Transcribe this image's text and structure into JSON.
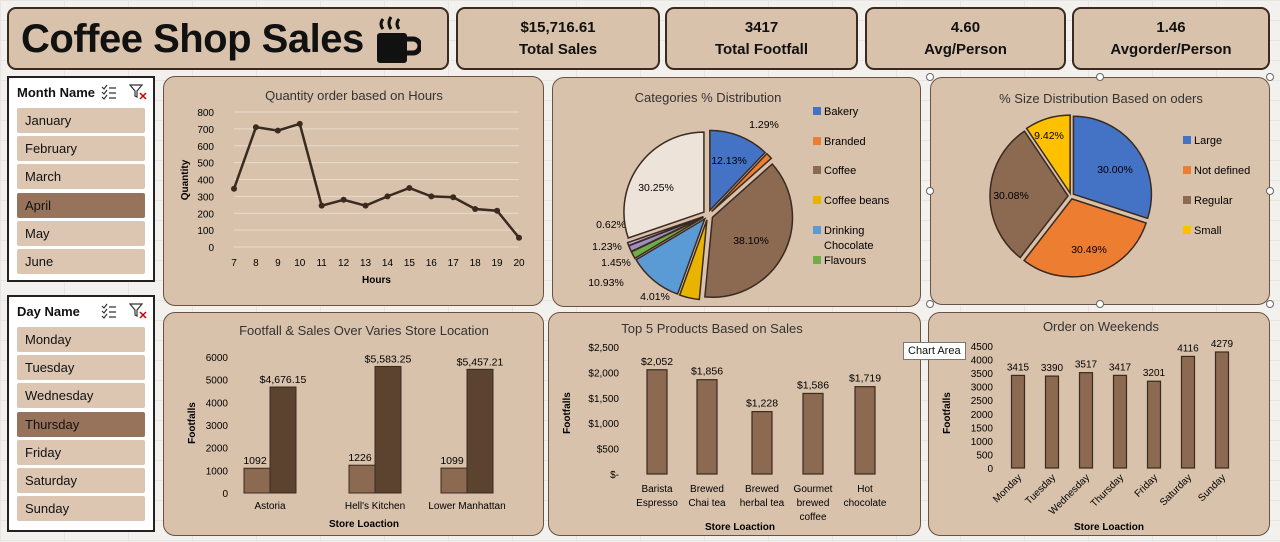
{
  "dashboard": {
    "title": "Coffee Shop Sales"
  },
  "kpis": [
    {
      "value": "$15,716.61",
      "label": "Total Sales"
    },
    {
      "value": "3417",
      "label": "Total Footfall"
    },
    {
      "value": "4.60",
      "label": "Avg/Person"
    },
    {
      "value": "1.46",
      "label": "Avgorder/Person"
    }
  ],
  "month_slicer": {
    "title": "Month Name",
    "items": [
      "January",
      "February",
      "March",
      "April",
      "May",
      "June"
    ],
    "selected": "April"
  },
  "day_slicer": {
    "title": "Day Name",
    "items": [
      "Monday",
      "Tuesday",
      "Wednesday",
      "Thursday",
      "Friday",
      "Saturday",
      "Sunday"
    ],
    "selected": "Thursday"
  },
  "tooltip": "Chart Area",
  "colors": {
    "dark_brown": "#5c4330",
    "mid_brown": "#8c6a52",
    "card": "#d9c2ab",
    "selected": "#98735b"
  },
  "chart_data": [
    {
      "type": "line",
      "title": "Quantity order based on Hours",
      "xlabel": "Hours",
      "ylabel": "Quantity",
      "x": [
        7,
        8,
        9,
        10,
        11,
        12,
        13,
        14,
        15,
        16,
        17,
        18,
        19,
        20
      ],
      "values": [
        345,
        710,
        690,
        730,
        245,
        280,
        245,
        300,
        350,
        300,
        295,
        225,
        215,
        55
      ],
      "ylim": [
        0,
        800
      ],
      "yticks": [
        0,
        100,
        200,
        300,
        400,
        500,
        600,
        700,
        800
      ]
    },
    {
      "type": "pie",
      "title": "Categories % Distribution",
      "slices": [
        {
          "name": "Bakery",
          "value": 12.13,
          "label": "12.13%",
          "color": "#4472c4"
        },
        {
          "name": "Branded",
          "value": 1.29,
          "label": "1.29%",
          "color": "#ed7d31"
        },
        {
          "name": "Coffee",
          "value": 38.1,
          "label": "38.10%",
          "color": "#8c6a52"
        },
        {
          "name": "Coffee beans",
          "value": 4.01,
          "label": "4.01%",
          "color": "#e8b400"
        },
        {
          "name": "Drinking Chocolate",
          "value": 10.93,
          "label": "10.93%",
          "color": "#5b9bd5"
        },
        {
          "name": "Flavours",
          "value": 1.45,
          "label": "1.45%",
          "color": "#70ad47"
        },
        {
          "name": "",
          "value": 1.23,
          "label": "1.23%",
          "color": "#9e8fbf"
        },
        {
          "name": "",
          "value": 0.62,
          "label": "0.62%",
          "color": "#c9a6d6"
        },
        {
          "name": "",
          "value": 30.25,
          "label": "30.25%",
          "color": "#ede3d8"
        }
      ],
      "legend": [
        "Bakery",
        "Branded",
        "Coffee",
        "Coffee beans",
        "Drinking Chocolate",
        "Flavours"
      ]
    },
    {
      "type": "pie",
      "title": "% Size Distribution Based on oders",
      "slices": [
        {
          "name": "Large",
          "value": 30.0,
          "label": "30.00%",
          "color": "#4472c4"
        },
        {
          "name": "Not defined",
          "value": 30.49,
          "label": "30.49%",
          "color": "#ed7d31"
        },
        {
          "name": "Regular",
          "value": 30.08,
          "label": "30.08%",
          "color": "#8c6a52"
        },
        {
          "name": "Small",
          "value": 9.42,
          "label": "9.42%",
          "color": "#ffc000"
        }
      ],
      "legend": [
        "Large",
        "Not defined",
        "Regular",
        "Small"
      ]
    },
    {
      "type": "bar",
      "title": "Footfall & Sales Over Varies Store Location",
      "xlabel": "Store Loaction",
      "ylabel": "Footfalls",
      "categories": [
        "Astoria",
        "Hell's Kitchen",
        "Lower Manhattan"
      ],
      "series": [
        {
          "values": [
            1092,
            1226,
            1099
          ],
          "labels": [
            "1092",
            "1226",
            "1099"
          ],
          "color": "#8c6a52"
        },
        {
          "values": [
            4676.15,
            5583.25,
            5457.21
          ],
          "labels": [
            "$4,676.15",
            "$5,583.25",
            "$5,457.21"
          ],
          "color": "#5c4330"
        }
      ],
      "ylim": [
        0,
        6000
      ],
      "yticks": [
        0,
        1000,
        2000,
        3000,
        4000,
        5000,
        6000
      ]
    },
    {
      "type": "bar",
      "title": "Top 5 Products Based on Sales",
      "xlabel": "Store Loaction",
      "ylabel": "Footfalls",
      "categories": [
        [
          "Barista",
          "Espresso"
        ],
        [
          "Brewed",
          "Chai tea"
        ],
        [
          "Brewed",
          "herbal tea"
        ],
        [
          "Gourmet",
          "brewed",
          "coffee"
        ],
        [
          "Hot",
          "chocolate"
        ]
      ],
      "values": [
        2052,
        1856,
        1228,
        1586,
        1719
      ],
      "labels": [
        "$2,052",
        "$1,856",
        "$1,228",
        "$1,586",
        "$1,719"
      ],
      "ylim": [
        0,
        2500
      ],
      "yticks": [
        "$-",
        "$500",
        "$1,000",
        "$1,500",
        "$2,000",
        "$2,500"
      ]
    },
    {
      "type": "bar",
      "title": "Order on Weekends",
      "xlabel": "Store Loaction",
      "ylabel": "Footfalls",
      "categories": [
        "Monday",
        "Tuesday",
        "Wednesday",
        "Thursday",
        "Friday",
        "Saturday",
        "Sunday"
      ],
      "values": [
        3415,
        3390,
        3517,
        3417,
        3201,
        4116,
        4279
      ],
      "ylim": [
        0,
        4500
      ],
      "yticks": [
        0,
        500,
        1000,
        1500,
        2000,
        2500,
        3000,
        3500,
        4000,
        4500
      ]
    }
  ]
}
